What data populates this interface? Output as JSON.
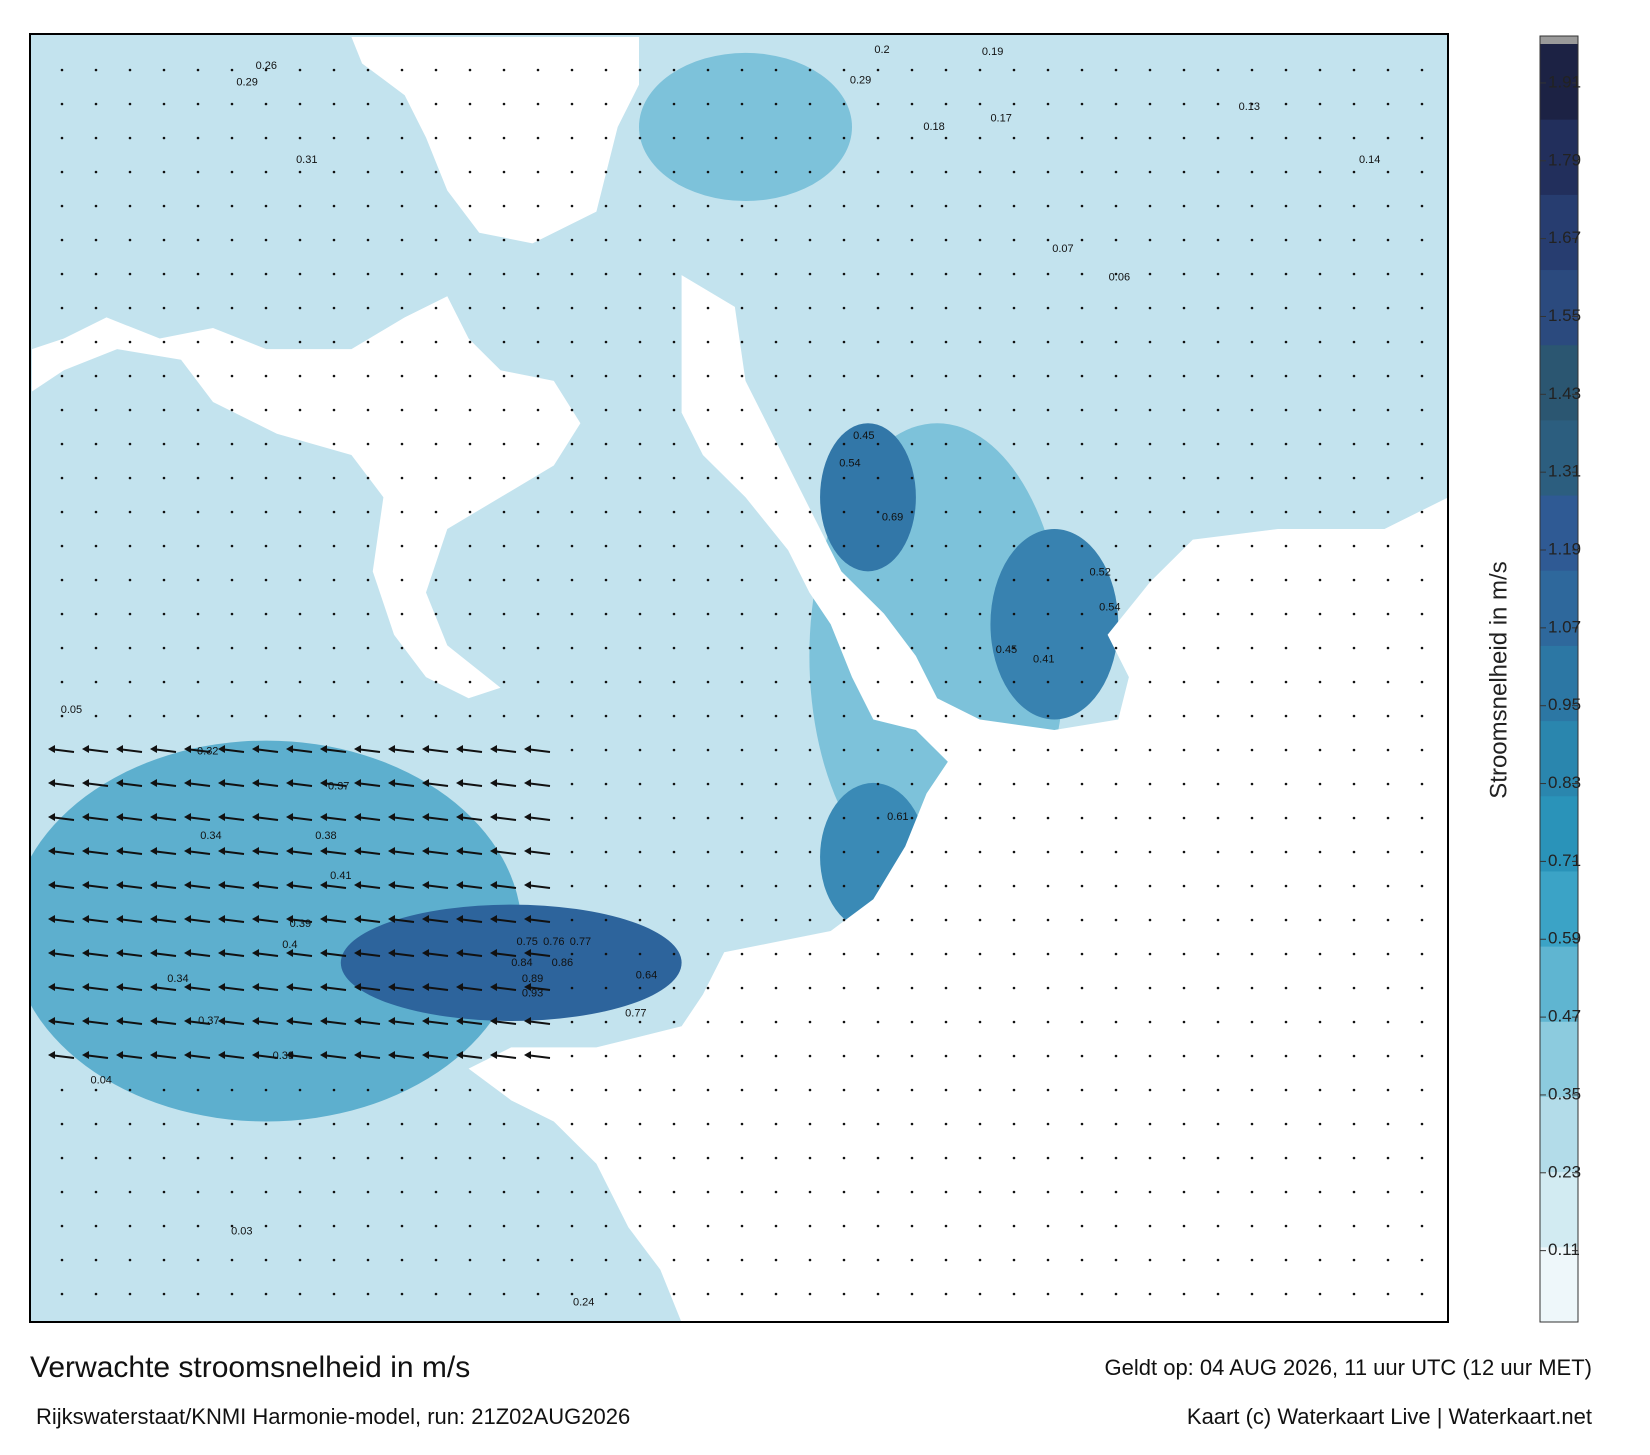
{
  "header": {
    "title": "Verwachte stroomsnelheid in m/s",
    "valid_time": "Geldt op: 04 AUG 2026, 11 uur UTC (12 uur MET)",
    "model_run": "Rijkswaterstaat/KNMI Harmonie-model, run: 21Z02AUG2026",
    "credit": "Kaart (c) Waterkaart Live | Waterkaart.net"
  },
  "colorbar": {
    "label": "Stroomsnelheid in m/s",
    "lim": [
      0,
      1.97
    ],
    "ticks": [
      0.11,
      0.23,
      0.35,
      0.47,
      0.59,
      0.71,
      0.83,
      0.95,
      1.07,
      1.19,
      1.31,
      1.43,
      1.55,
      1.67,
      1.79,
      1.91
    ],
    "colors": [
      "#eef7fa",
      "#d2ebf2",
      "#b3dce9",
      "#8ccbde",
      "#5fb5d1",
      "#3ba3c6",
      "#2a93b9",
      "#2a86ae",
      "#2c77a4",
      "#2e689c",
      "#2f5a94",
      "#2c5e7f",
      "#2b5671",
      "#2b4a7e",
      "#273d70",
      "#222f5c",
      "#1c2244"
    ]
  },
  "map_labels": [
    0.32,
    0.37,
    0.34,
    0.38,
    0.41,
    0.39,
    0.4,
    0.34,
    0.37,
    0.39,
    0.29,
    0.26,
    0.31,
    0.19,
    0.2,
    0.29,
    0.18,
    0.17,
    0.13,
    0.14,
    0.06,
    0.07,
    0.45,
    0.54,
    0.69,
    0.52,
    0.54,
    0.45,
    0.41,
    0.61,
    0.75,
    0.76,
    0.77,
    0.84,
    0.86,
    0.89,
    0.93,
    0.64,
    0.77,
    0.05,
    0.04,
    0.03,
    0.24
  ]
}
